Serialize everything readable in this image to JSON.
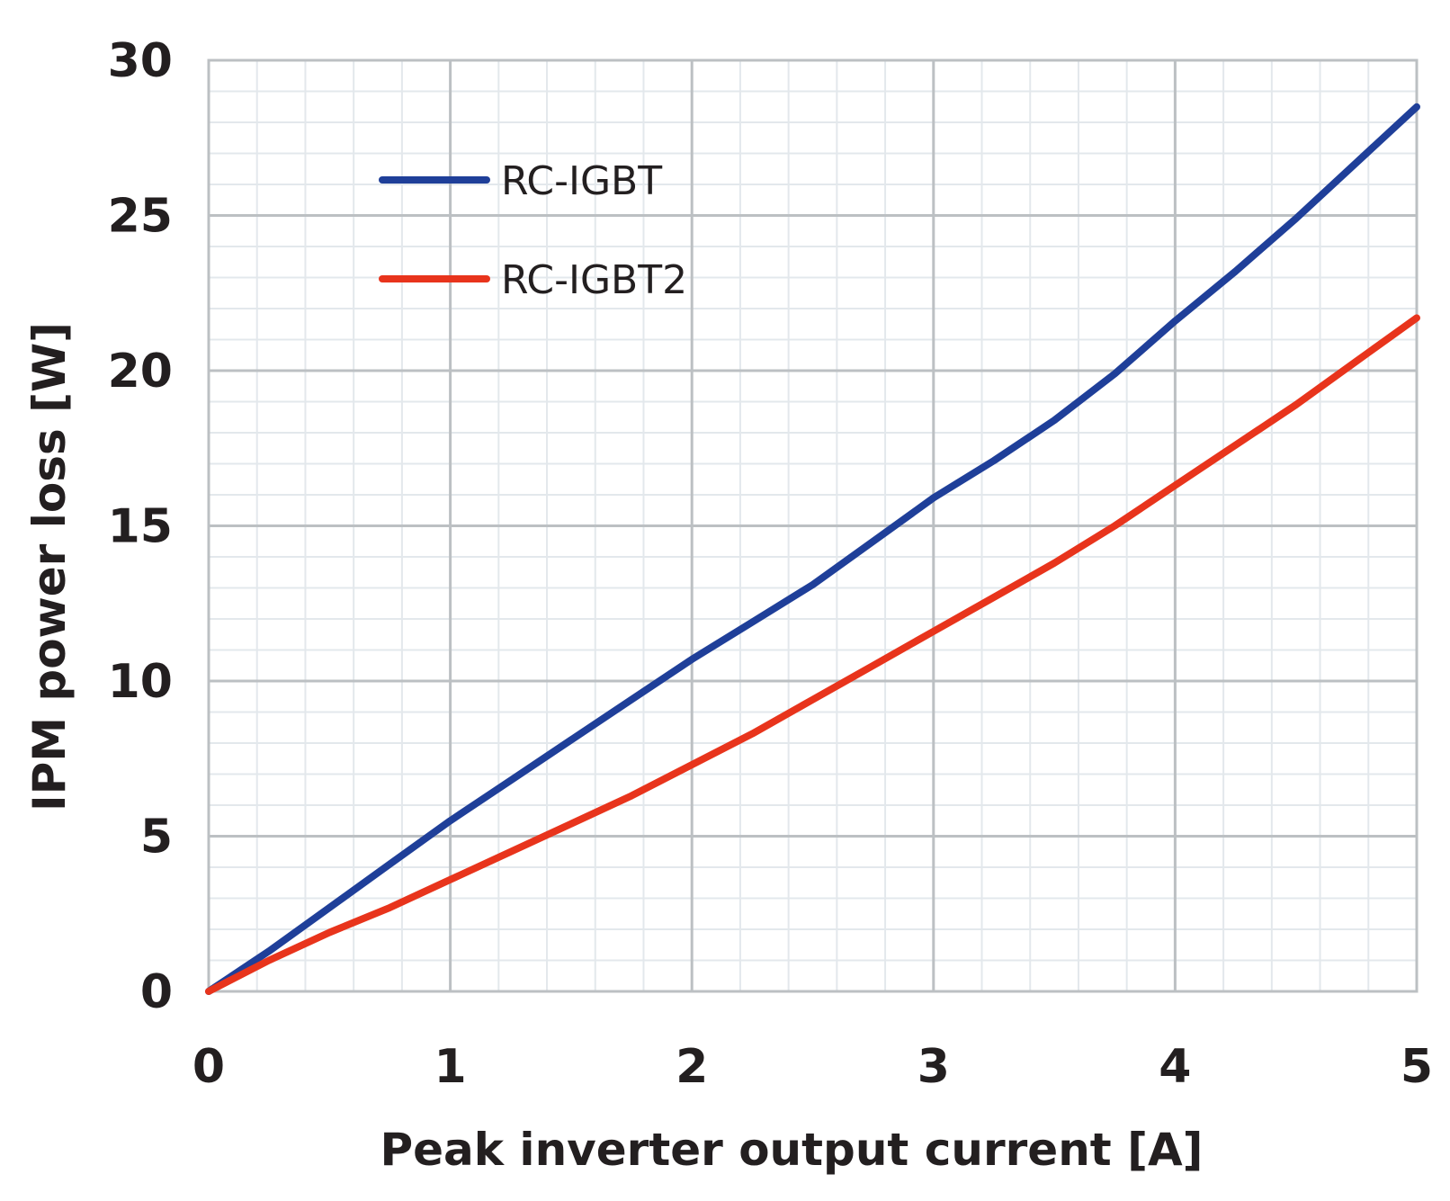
{
  "chart_data": {
    "type": "line",
    "xlabel": "Peak inverter output current [A]",
    "ylabel": "IPM power loss [W]",
    "xlim": [
      0,
      5
    ],
    "ylim": [
      0,
      30
    ],
    "x_ticks": [
      "0",
      "1",
      "2",
      "3",
      "4",
      "5"
    ],
    "y_ticks": [
      "0",
      "5",
      "10",
      "15",
      "20",
      "25",
      "30"
    ],
    "grid": true,
    "legend_position": "top-left",
    "series": [
      {
        "name": "RC-IGBT",
        "color": "#1f3f99",
        "x": [
          0,
          0.25,
          0.5,
          0.75,
          1.0,
          1.25,
          1.5,
          1.75,
          2.0,
          2.25,
          2.5,
          2.75,
          3.0,
          3.25,
          3.5,
          3.75,
          4.0,
          4.25,
          4.5,
          4.75,
          5.0
        ],
        "y": [
          0,
          1.3,
          2.7,
          4.1,
          5.5,
          6.8,
          8.1,
          9.4,
          10.7,
          11.9,
          13.1,
          14.5,
          15.9,
          17.1,
          18.4,
          19.9,
          21.6,
          23.2,
          24.9,
          26.7,
          28.5
        ]
      },
      {
        "name": "RC-IGBT2",
        "color": "#e8341c",
        "x": [
          0,
          0.25,
          0.5,
          0.75,
          1.0,
          1.25,
          1.5,
          1.75,
          2.0,
          2.25,
          2.5,
          2.75,
          3.0,
          3.25,
          3.5,
          3.75,
          4.0,
          4.25,
          4.5,
          4.75,
          5.0
        ],
        "y": [
          0,
          1.0,
          1.9,
          2.7,
          3.6,
          4.5,
          5.4,
          6.3,
          7.3,
          8.3,
          9.4,
          10.5,
          11.6,
          12.7,
          13.8,
          15.0,
          16.3,
          17.6,
          18.9,
          20.3,
          21.7
        ]
      }
    ]
  }
}
